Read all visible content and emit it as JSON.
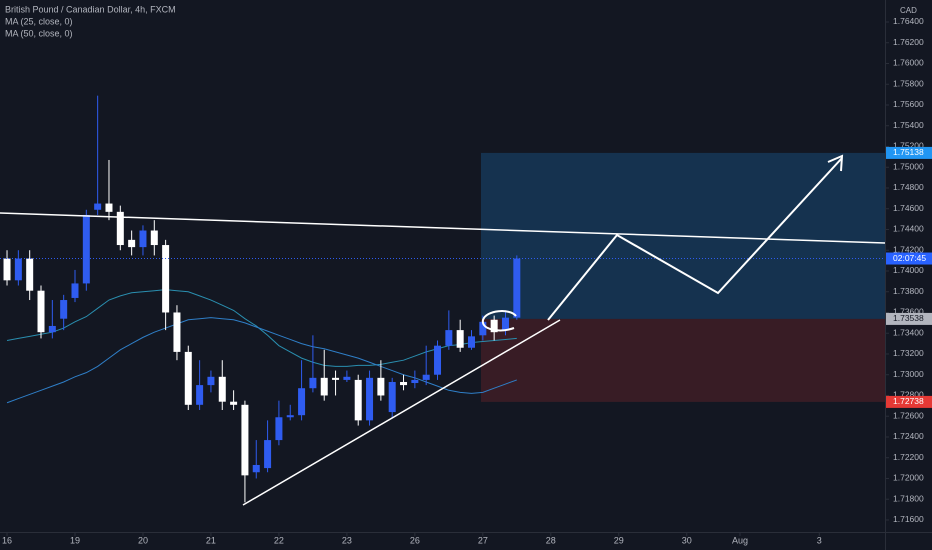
{
  "chart_data": {
    "type": "candlestick",
    "title": "British Pound / Canadian Dollar, 4h, FXCM",
    "currency": "CAD",
    "countdown": "02:07:45",
    "up_color": "#2f5cf0",
    "down_color": "#ffffff",
    "x": [
      0,
      1,
      2,
      3,
      4,
      5,
      6,
      7,
      8,
      9,
      10,
      11,
      12,
      13,
      14,
      15,
      16,
      17,
      18,
      19,
      20,
      21,
      22,
      23,
      24,
      25,
      26,
      27,
      28,
      29,
      30,
      31,
      32,
      33,
      34,
      35,
      36,
      37,
      38,
      39,
      40,
      41,
      42,
      43,
      44,
      45
    ],
    "open": [
      1.7412,
      1.7391,
      1.7412,
      1.7381,
      1.7341,
      1.7354,
      1.7374,
      1.7388,
      1.7459,
      1.7465,
      1.7457,
      1.743,
      1.7423,
      1.7439,
      1.7425,
      1.736,
      1.7322,
      1.7271,
      1.729,
      1.7298,
      1.7274,
      1.7271,
      1.7206,
      1.721,
      1.7237,
      1.7259,
      1.7261,
      1.7287,
      1.7297,
      1.7297,
      1.7295,
      1.7295,
      1.7256,
      1.7297,
      1.7264,
      1.7293,
      1.7292,
      1.7295,
      1.73,
      1.7328,
      1.7343,
      1.7326,
      1.7338,
      1.7353,
      1.7343,
      1.7355
    ],
    "high": [
      1.742,
      1.742,
      1.742,
      1.7386,
      1.7372,
      1.7377,
      1.7401,
      1.7459,
      1.7569,
      1.7507,
      1.7463,
      1.7439,
      1.7444,
      1.7449,
      1.743,
      1.7367,
      1.7328,
      1.7314,
      1.7304,
      1.7314,
      1.7285,
      1.7275,
      1.7237,
      1.7256,
      1.7275,
      1.7271,
      1.7314,
      1.7338,
      1.7324,
      1.7304,
      1.7304,
      1.73,
      1.7304,
      1.7314,
      1.7297,
      1.73,
      1.7304,
      1.7328,
      1.7333,
      1.7362,
      1.7353,
      1.7343,
      1.7357,
      1.7357,
      1.7362,
      1.7415
    ],
    "low": [
      1.7386,
      1.7386,
      1.7372,
      1.7335,
      1.7335,
      1.7343,
      1.737,
      1.7381,
      1.7454,
      1.7449,
      1.742,
      1.7415,
      1.7415,
      1.7415,
      1.7343,
      1.7314,
      1.7266,
      1.7266,
      1.7283,
      1.7266,
      1.7266,
      1.7177,
      1.72,
      1.7206,
      1.7232,
      1.7256,
      1.7256,
      1.7283,
      1.7275,
      1.728,
      1.7293,
      1.7251,
      1.7251,
      1.7275,
      1.7258,
      1.7285,
      1.7287,
      1.729,
      1.7295,
      1.7324,
      1.7322,
      1.7324,
      1.7333,
      1.7333,
      1.7338,
      1.7353
    ],
    "close": [
      1.7391,
      1.7412,
      1.7381,
      1.7341,
      1.7347,
      1.7372,
      1.7388,
      1.7454,
      1.7465,
      1.7457,
      1.7425,
      1.7423,
      1.7439,
      1.7425,
      1.736,
      1.7322,
      1.7271,
      1.729,
      1.7298,
      1.7274,
      1.7271,
      1.7203,
      1.7213,
      1.7237,
      1.7259,
      1.7261,
      1.7287,
      1.7297,
      1.728,
      1.7295,
      1.7298,
      1.7256,
      1.7297,
      1.728,
      1.7293,
      1.729,
      1.7295,
      1.73,
      1.7328,
      1.7343,
      1.7326,
      1.7337,
      1.7351,
      1.7341,
      1.7355,
      1.7412
    ],
    "series": [
      {
        "name": "MA (25, close, 0)",
        "color": "#2a8fb0",
        "values": [
          1.7333,
          1.7335,
          1.7337,
          1.7339,
          1.7341,
          1.7345,
          1.7351,
          1.7356,
          1.7364,
          1.7372,
          1.7376,
          1.7379,
          1.738,
          1.7381,
          1.7382,
          1.7381,
          1.738,
          1.7376,
          1.7372,
          1.7367,
          1.7362,
          1.7354,
          1.7347,
          1.7338,
          1.7328,
          1.7322,
          1.7316,
          1.7312,
          1.7309,
          1.7308,
          1.7308,
          1.7309,
          1.7309,
          1.731,
          1.7312,
          1.7314,
          1.7318,
          1.7322,
          1.7325,
          1.7328,
          1.7329,
          1.7331,
          1.7332,
          1.7333,
          1.7334,
          1.7335
        ]
      },
      {
        "name": "MA (50, close, 0)",
        "color": "#2f7fc8",
        "values": [
          1.7273,
          1.7277,
          1.7281,
          1.7285,
          1.7289,
          1.7293,
          1.7298,
          1.7302,
          1.7308,
          1.7316,
          1.7324,
          1.733,
          1.7336,
          1.7341,
          1.7345,
          1.7349,
          1.7353,
          1.7354,
          1.7355,
          1.7354,
          1.7353,
          1.735,
          1.7346,
          1.7342,
          1.7338,
          1.7334,
          1.733,
          1.7327,
          1.7325,
          1.7322,
          1.7319,
          1.7316,
          1.7312,
          1.7308,
          1.7304,
          1.73,
          1.7297,
          1.7293,
          1.7289,
          1.7285,
          1.7283,
          1.7282,
          1.7283,
          1.7287,
          1.7291,
          1.7295
        ]
      }
    ],
    "xlim": [
      -0.62,
      77.5
    ],
    "ylim": [
      1.71484,
      1.76612
    ],
    "xticks": [
      {
        "value": 0,
        "label": "16"
      },
      {
        "value": 6,
        "label": "19"
      },
      {
        "value": 12,
        "label": "20"
      },
      {
        "value": 18,
        "label": "21"
      },
      {
        "value": 24,
        "label": "22"
      },
      {
        "value": 30,
        "label": "23"
      },
      {
        "value": 36,
        "label": "26"
      },
      {
        "value": 42,
        "label": "27"
      },
      {
        "value": 48,
        "label": "28"
      },
      {
        "value": 54,
        "label": "29"
      },
      {
        "value": 60,
        "label": "30"
      },
      {
        "value": 64.7,
        "label": "Aug"
      },
      {
        "value": 71.7,
        "label": "3"
      }
    ],
    "yticks": [
      {
        "value": 1.764,
        "label": "1.76400"
      },
      {
        "value": 1.762,
        "label": "1.76200"
      },
      {
        "value": 1.76,
        "label": "1.76000"
      },
      {
        "value": 1.758,
        "label": "1.75800"
      },
      {
        "value": 1.756,
        "label": "1.75600"
      },
      {
        "value": 1.754,
        "label": "1.75400"
      },
      {
        "value": 1.752,
        "label": "1.75200"
      },
      {
        "value": 1.75,
        "label": "1.75000"
      },
      {
        "value": 1.748,
        "label": "1.74800"
      },
      {
        "value": 1.746,
        "label": "1.74600"
      },
      {
        "value": 1.744,
        "label": "1.74400"
      },
      {
        "value": 1.742,
        "label": "1.74200"
      },
      {
        "value": 1.74,
        "label": "1.74000"
      },
      {
        "value": 1.738,
        "label": "1.73800"
      },
      {
        "value": 1.736,
        "label": "1.73600"
      },
      {
        "value": 1.734,
        "label": "1.73400"
      },
      {
        "value": 1.732,
        "label": "1.73200"
      },
      {
        "value": 1.73,
        "label": "1.73000"
      },
      {
        "value": 1.728,
        "label": "1.72800"
      },
      {
        "value": 1.726,
        "label": "1.72600"
      },
      {
        "value": 1.724,
        "label": "1.72400"
      },
      {
        "value": 1.722,
        "label": "1.72200"
      },
      {
        "value": 1.72,
        "label": "1.72000"
      },
      {
        "value": 1.718,
        "label": "1.71800"
      },
      {
        "value": 1.716,
        "label": "1.71600"
      }
    ],
    "price_labels": [
      {
        "value": 1.75138,
        "label": "1.75138",
        "color": "#2196f3"
      },
      {
        "value": 1.73538,
        "label": "1.73538",
        "color": "#b2b5be"
      },
      {
        "value": 1.72738,
        "label": "1.72738",
        "color": "#e53935"
      }
    ]
  }
}
